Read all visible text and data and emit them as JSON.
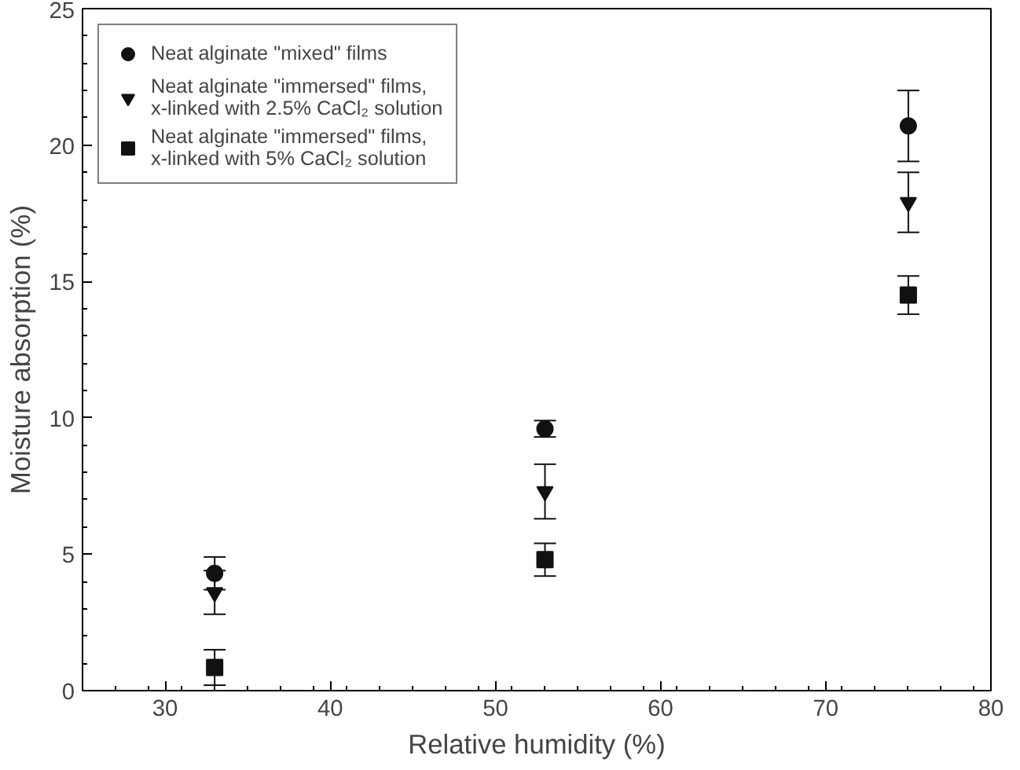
{
  "chart_data": {
    "type": "scatter",
    "xlabel": "Relative humidity (%)",
    "ylabel": "Moisture absorption (%)",
    "xlim": [
      25,
      80
    ],
    "ylim": [
      0,
      25
    ],
    "xticks": [
      30,
      40,
      50,
      60,
      70,
      80
    ],
    "yticks": [
      0,
      5,
      10,
      15,
      20,
      25
    ],
    "grid": false,
    "legend": "top left",
    "series": [
      {
        "name": "Neat alginate \"mixed\" films",
        "color": "#111111",
        "marker": "circle",
        "x": [
          33,
          53,
          75
        ],
        "values": [
          4.3,
          9.6,
          20.7
        ],
        "errors": [
          0.6,
          0.3,
          1.3
        ]
      },
      {
        "name": "Neat alginate \"immersed\" films,\nx-linked with 2.5% CaCl₂ solution",
        "color": "#111111",
        "marker": "triangle",
        "x": [
          33,
          53,
          75
        ],
        "values": [
          3.6,
          7.3,
          17.9
        ],
        "errors": [
          0.8,
          1.0,
          1.1
        ]
      },
      {
        "name": "Neat alginate \"immersed\" films,\nx-linked with 5% CaCl₂ solution",
        "color": "#111111",
        "marker": "square",
        "x": [
          33,
          53,
          75
        ],
        "values": [
          0.85,
          4.8,
          14.5
        ],
        "errors": [
          0.65,
          0.6,
          0.7
        ]
      }
    ]
  }
}
